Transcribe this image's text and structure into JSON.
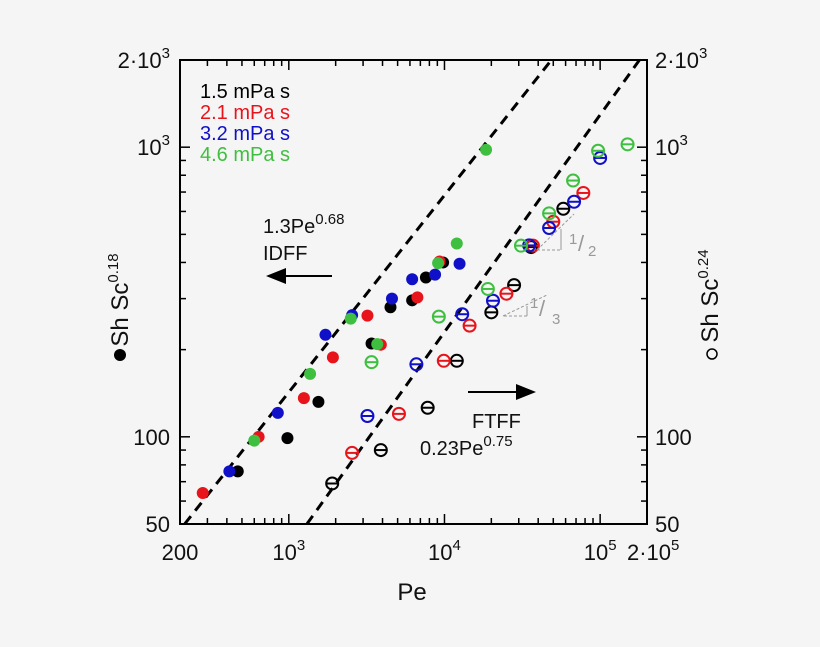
{
  "chart_data": {
    "type": "scatter",
    "xlabel": "Pe",
    "ylabel_left": "Sh Sc",
    "ylabel_left_exp": "0.18",
    "ylabel_right": "Sh Sc",
    "ylabel_right_exp": "0.24",
    "xscale": "log",
    "yscale": "log",
    "xlim": [
      200,
      200000
    ],
    "ylim": [
      50,
      2000
    ],
    "x_ticks": [
      {
        "value": 200,
        "base": "200",
        "exp": ""
      },
      {
        "value": 1000,
        "base": "10",
        "exp": "3"
      },
      {
        "value": 10000,
        "base": "10",
        "exp": "4"
      },
      {
        "value": 100000,
        "base": "10",
        "exp": "5"
      },
      {
        "value": 200000,
        "base": "2·10",
        "exp": "5"
      }
    ],
    "y_ticks": [
      {
        "value": 50,
        "base": "50",
        "exp": ""
      },
      {
        "value": 100,
        "base": "100",
        "exp": ""
      },
      {
        "value": 1000,
        "base": "10",
        "exp": "3"
      },
      {
        "value": 2000,
        "base": "2·10",
        "exp": "3"
      }
    ],
    "legend": [
      {
        "name": "1.5 mPa s",
        "color": "#000000"
      },
      {
        "name": "2.1 mPa s",
        "color": "#e8141b"
      },
      {
        "name": "3.2 mPa s",
        "color": "#1010c8"
      },
      {
        "name": "4.6 mPa s",
        "color": "#3fbf3f"
      }
    ],
    "fits": [
      {
        "label": "1.3Pe",
        "exp": "0.68",
        "regime": "IDFF",
        "coef": 1.3,
        "power": 0.68
      },
      {
        "label": "0.23Pe",
        "exp": "0.75",
        "regime": "FTFF",
        "coef": 0.23,
        "power": 0.75
      }
    ],
    "slope_markers": [
      {
        "num": "1",
        "den": "2"
      },
      {
        "num": "1",
        "den": "3"
      }
    ],
    "series": [
      {
        "name": "1.5 mPa s",
        "marker": "filled",
        "color": "#000000",
        "points": [
          [
            470,
            76
          ],
          [
            980,
            99
          ],
          [
            1550,
            132
          ],
          [
            3400,
            210
          ],
          [
            4500,
            280
          ],
          [
            6200,
            296
          ],
          [
            7600,
            355
          ],
          [
            9800,
            400
          ]
        ]
      },
      {
        "name": "2.1 mPa s",
        "marker": "filled",
        "color": "#e8141b",
        "points": [
          [
            280,
            64
          ],
          [
            640,
            100
          ],
          [
            1250,
            136
          ],
          [
            1920,
            188
          ],
          [
            3200,
            262
          ],
          [
            3900,
            208
          ],
          [
            6700,
            303
          ],
          [
            9300,
            403
          ]
        ]
      },
      {
        "name": "3.2 mPa s",
        "marker": "filled",
        "color": "#1010c8",
        "points": [
          [
            415,
            76
          ],
          [
            850,
            121
          ],
          [
            1720,
            225
          ],
          [
            2550,
            263
          ],
          [
            4600,
            300
          ],
          [
            6200,
            350
          ],
          [
            8700,
            363
          ],
          [
            12500,
            396
          ]
        ]
      },
      {
        "name": "4.6 mPa s",
        "marker": "filled",
        "color": "#3fbf3f",
        "points": [
          [
            600,
            97
          ],
          [
            1370,
            165
          ],
          [
            2500,
            256
          ],
          [
            3700,
            209
          ],
          [
            9100,
            398
          ],
          [
            12000,
            465
          ],
          [
            18500,
            980
          ]
        ]
      },
      {
        "name": "1.5 mPa s",
        "marker": "open",
        "color": "#000000",
        "points": [
          [
            1900,
            69
          ],
          [
            3900,
            90
          ],
          [
            7800,
            126
          ],
          [
            12000,
            183
          ],
          [
            20000,
            269
          ],
          [
            28000,
            334
          ],
          [
            36000,
            452
          ],
          [
            58000,
            613
          ]
        ]
      },
      {
        "name": "2.1 mPa s",
        "marker": "open",
        "color": "#e8141b",
        "points": [
          [
            2550,
            88
          ],
          [
            5100,
            120
          ],
          [
            9900,
            183
          ],
          [
            14500,
            242
          ],
          [
            25000,
            312
          ],
          [
            37000,
            457
          ],
          [
            50000,
            553
          ],
          [
            78000,
            695
          ]
        ]
      },
      {
        "name": "3.2 mPa s",
        "marker": "open",
        "color": "#1010c8",
        "points": [
          [
            3200,
            118
          ],
          [
            6600,
            178
          ],
          [
            13000,
            265
          ],
          [
            20500,
            295
          ],
          [
            35000,
            458
          ],
          [
            47000,
            526
          ],
          [
            68000,
            648
          ],
          [
            100000,
            918
          ]
        ]
      },
      {
        "name": "4.6 mPa s",
        "marker": "open",
        "color": "#3fbf3f",
        "points": [
          [
            3400,
            181
          ],
          [
            9200,
            260
          ],
          [
            19000,
            324
          ],
          [
            31000,
            457
          ],
          [
            47000,
            591
          ],
          [
            67000,
            767
          ],
          [
            97000,
            972
          ],
          [
            150000,
            1023
          ]
        ]
      }
    ]
  }
}
